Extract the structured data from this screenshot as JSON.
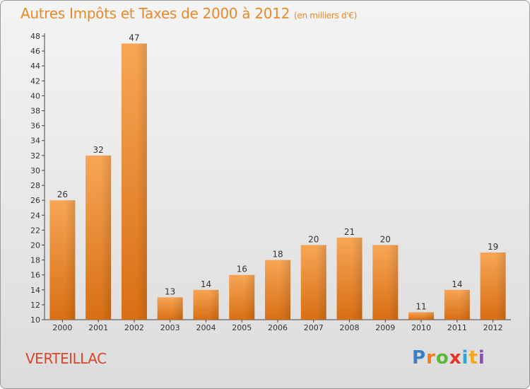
{
  "title": {
    "main": "Autres Impôts et Taxes de 2000 à 2012",
    "unit": "(en milliers d'€)"
  },
  "commune": "VERTEILLAC",
  "logo": {
    "letters": [
      "P",
      "r",
      "o",
      "x",
      "i",
      "t",
      "i"
    ],
    "colors": [
      "#3b7fc4",
      "#f07c1a",
      "#5db53a",
      "#e5332a",
      "#2aa6d8",
      "#f2a81c",
      "#8a4fb0"
    ]
  },
  "colors": {
    "bar_light": "#f7a656",
    "bar_dark": "#d86f14",
    "axis": "#444444",
    "text": "#333333",
    "title": "#e8892b",
    "commune": "#d9472b"
  },
  "chart_data": {
    "type": "bar",
    "categories": [
      "2000",
      "2001",
      "2002",
      "2003",
      "2004",
      "2005",
      "2006",
      "2007",
      "2008",
      "2009",
      "2010",
      "2011",
      "2012"
    ],
    "values": [
      26,
      32,
      47,
      13,
      14,
      16,
      18,
      20,
      21,
      20,
      11,
      14,
      19
    ],
    "ylim": [
      10,
      48
    ],
    "yticks": [
      10,
      12,
      14,
      16,
      18,
      20,
      22,
      24,
      26,
      28,
      30,
      32,
      34,
      36,
      38,
      40,
      42,
      44,
      46,
      48
    ],
    "data_labels": true,
    "grid": false
  }
}
